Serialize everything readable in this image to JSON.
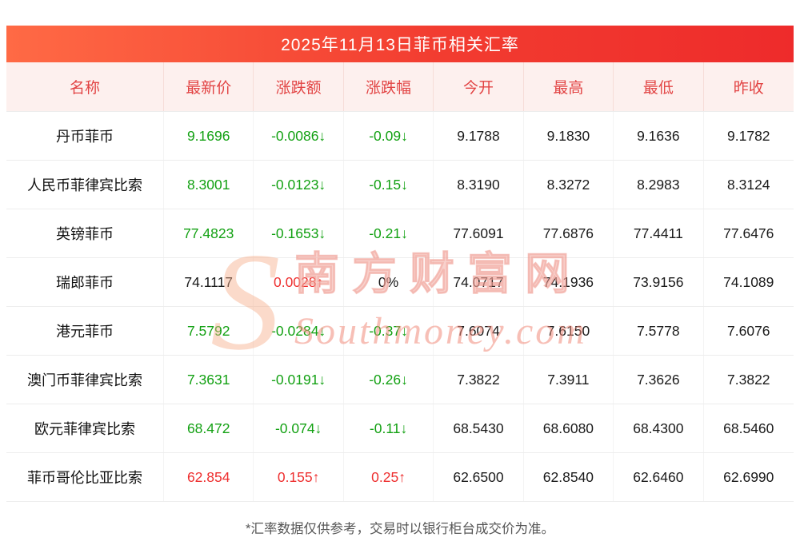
{
  "chart_data": {
    "type": "table",
    "title": "2025年11月13日菲币相关汇率",
    "columns": [
      "名称",
      "最新价",
      "涨跌额",
      "涨跌幅",
      "今开",
      "最高",
      "最低",
      "昨收"
    ],
    "rows": [
      {
        "name": "丹币菲币",
        "latest": {
          "text": "9.1696",
          "dir": "down"
        },
        "change": {
          "text": "-0.0086↓",
          "dir": "down"
        },
        "pct": {
          "text": "-0.09↓",
          "dir": "down"
        },
        "open": "9.1788",
        "high": "9.1830",
        "low": "9.1636",
        "prev": "9.1782"
      },
      {
        "name": "人民币菲律宾比索",
        "latest": {
          "text": "8.3001",
          "dir": "down"
        },
        "change": {
          "text": "-0.0123↓",
          "dir": "down"
        },
        "pct": {
          "text": "-0.15↓",
          "dir": "down"
        },
        "open": "8.3190",
        "high": "8.3272",
        "low": "8.2983",
        "prev": "8.3124"
      },
      {
        "name": "英镑菲币",
        "latest": {
          "text": "77.4823",
          "dir": "down"
        },
        "change": {
          "text": "-0.1653↓",
          "dir": "down"
        },
        "pct": {
          "text": "-0.21↓",
          "dir": "down"
        },
        "open": "77.6091",
        "high": "77.6876",
        "low": "77.4411",
        "prev": "77.6476"
      },
      {
        "name": "瑞郎菲币",
        "latest": {
          "text": "74.1117",
          "dir": "flat"
        },
        "change": {
          "text": "0.0028↑",
          "dir": "up"
        },
        "pct": {
          "text": "0%",
          "dir": "flat"
        },
        "open": "74.0717",
        "high": "74.1936",
        "low": "73.9156",
        "prev": "74.1089"
      },
      {
        "name": "港元菲币",
        "latest": {
          "text": "7.5792",
          "dir": "down"
        },
        "change": {
          "text": "-0.0284↓",
          "dir": "down"
        },
        "pct": {
          "text": "-0.37↓",
          "dir": "down"
        },
        "open": "7.6074",
        "high": "7.6150",
        "low": "7.5778",
        "prev": "7.6076"
      },
      {
        "name": "澳门币菲律宾比索",
        "latest": {
          "text": "7.3631",
          "dir": "down"
        },
        "change": {
          "text": "-0.0191↓",
          "dir": "down"
        },
        "pct": {
          "text": "-0.26↓",
          "dir": "down"
        },
        "open": "7.3822",
        "high": "7.3911",
        "low": "7.3626",
        "prev": "7.3822"
      },
      {
        "name": "欧元菲律宾比索",
        "latest": {
          "text": "68.472",
          "dir": "down"
        },
        "change": {
          "text": "-0.074↓",
          "dir": "down"
        },
        "pct": {
          "text": "-0.11↓",
          "dir": "down"
        },
        "open": "68.5430",
        "high": "68.6080",
        "low": "68.4300",
        "prev": "68.5460"
      },
      {
        "name": "菲币哥伦比亚比索",
        "latest": {
          "text": "62.854",
          "dir": "up"
        },
        "change": {
          "text": "0.155↑",
          "dir": "up"
        },
        "pct": {
          "text": "0.25↑",
          "dir": "up"
        },
        "open": "62.6500",
        "high": "62.8540",
        "low": "62.6460",
        "prev": "62.6990"
      }
    ]
  },
  "watermark": {
    "initial": "S",
    "cn": "南方财富网",
    "en": "Southmoney.com"
  },
  "footer": {
    "note": "*汇率数据仅供参考，交易时以银行柜台成交价为准。"
  },
  "colors": {
    "up_red": "#ee2f2f",
    "down_green": "#13a113",
    "header_bg": "#fdf0ee",
    "header_text": "#e24444",
    "title_gradient_start": "#ff6a45",
    "title_gradient_end": "#ee2b2b"
  }
}
